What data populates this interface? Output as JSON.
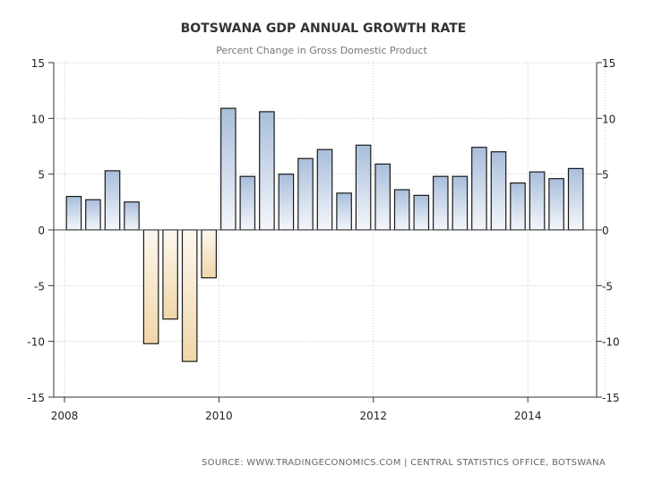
{
  "chart_data": {
    "type": "bar",
    "title": "BOTSWANA GDP ANNUAL GROWTH RATE",
    "subtitle": "Percent Change in Gross Domestic Product",
    "xlabel": "",
    "ylabel": "",
    "ylim": [
      -15,
      15
    ],
    "yticks": [
      15,
      10,
      5,
      0,
      -5,
      -10,
      -15
    ],
    "xlim": [
      2008,
      2015
    ],
    "xticks": [
      {
        "label": "2008",
        "value": 2008
      },
      {
        "label": "2010",
        "value": 2010
      },
      {
        "label": "2012",
        "value": 2012
      },
      {
        "label": "2014",
        "value": 2014
      }
    ],
    "grid": true,
    "positive_color": "#b7c9e0",
    "negative_color": "#f2dcb4",
    "bar_width_years": 0.19,
    "bars": [
      {
        "x": 2008.12,
        "value": 3.0
      },
      {
        "x": 2008.37,
        "value": 2.7
      },
      {
        "x": 2008.62,
        "value": 5.3
      },
      {
        "x": 2008.87,
        "value": 2.5
      },
      {
        "x": 2009.12,
        "value": -10.2
      },
      {
        "x": 2009.37,
        "value": -8.0
      },
      {
        "x": 2009.62,
        "value": -11.8
      },
      {
        "x": 2009.87,
        "value": -4.3
      },
      {
        "x": 2010.12,
        "value": 10.9
      },
      {
        "x": 2010.37,
        "value": 4.8
      },
      {
        "x": 2010.62,
        "value": 10.6
      },
      {
        "x": 2010.87,
        "value": 5.0
      },
      {
        "x": 2011.12,
        "value": 6.4
      },
      {
        "x": 2011.37,
        "value": 7.2
      },
      {
        "x": 2011.62,
        "value": 3.3
      },
      {
        "x": 2011.87,
        "value": 7.6
      },
      {
        "x": 2012.12,
        "value": 5.9
      },
      {
        "x": 2012.37,
        "value": 3.6
      },
      {
        "x": 2012.62,
        "value": 3.1
      },
      {
        "x": 2012.87,
        "value": 4.8
      },
      {
        "x": 2013.12,
        "value": 4.8
      },
      {
        "x": 2013.37,
        "value": 7.4
      },
      {
        "x": 2013.62,
        "value": 7.0
      },
      {
        "x": 2013.87,
        "value": 4.2
      },
      {
        "x": 2014.12,
        "value": 5.2
      },
      {
        "x": 2014.37,
        "value": 4.6
      },
      {
        "x": 2014.62,
        "value": 5.5
      }
    ],
    "source": "SOURCE:  WWW.TRADINGECONOMICS.COM  |  CENTRAL  STATISTICS OFFICE,  BOTSWANA"
  }
}
